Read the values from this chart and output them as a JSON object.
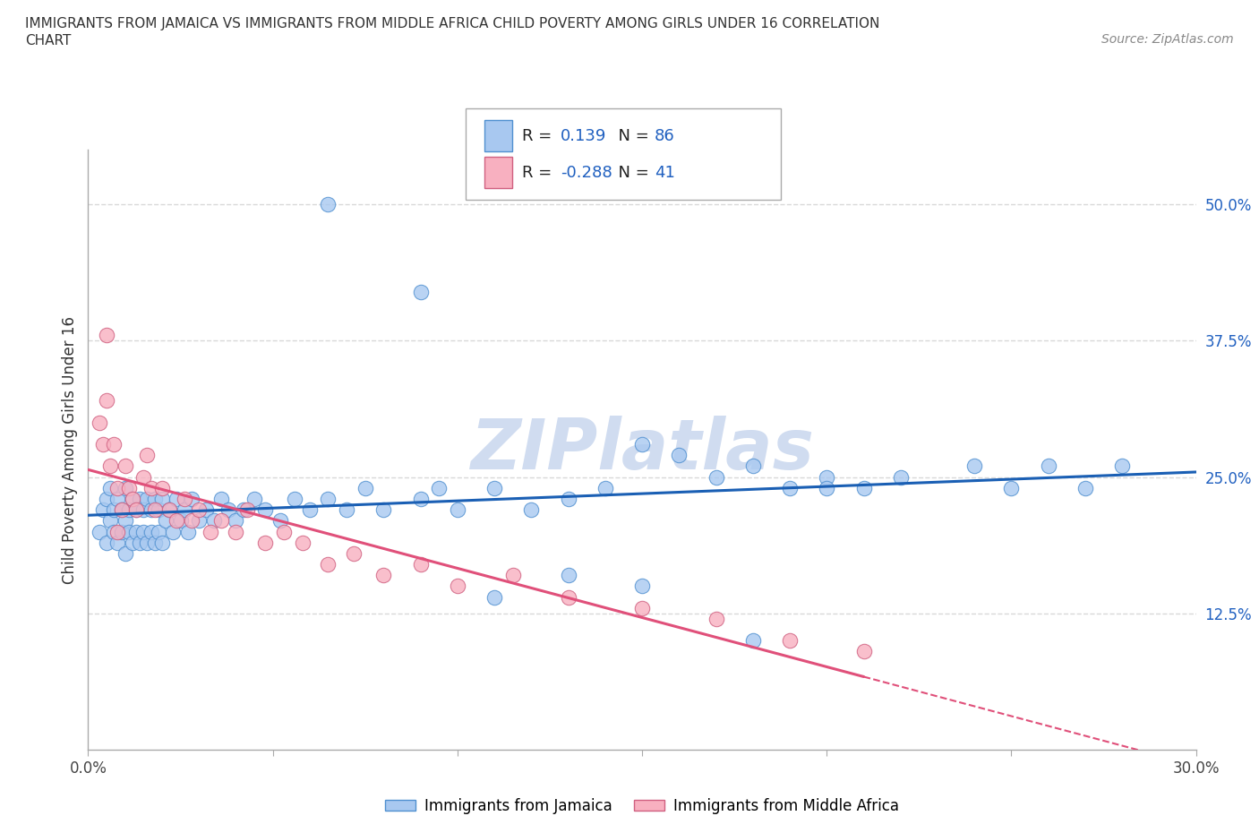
{
  "title": "IMMIGRANTS FROM JAMAICA VS IMMIGRANTS FROM MIDDLE AFRICA CHILD POVERTY AMONG GIRLS UNDER 16 CORRELATION\nCHART",
  "source": "Source: ZipAtlas.com",
  "ylabel": "Child Poverty Among Girls Under 16",
  "xlim": [
    0,
    0.3
  ],
  "ylim": [
    0,
    0.55
  ],
  "xtick_positions": [
    0.0,
    0.05,
    0.1,
    0.15,
    0.2,
    0.25,
    0.3
  ],
  "xticklabels": [
    "0.0%",
    "",
    "",
    "",
    "",
    "",
    "30.0%"
  ],
  "ytick_positions": [
    0.125,
    0.25,
    0.375,
    0.5
  ],
  "yticklabels_right": [
    "12.5%",
    "25.0%",
    "37.5%",
    "50.0%"
  ],
  "R_jamaica": 0.139,
  "N_jamaica": 86,
  "R_middle_africa": -0.288,
  "N_middle_africa": 41,
  "color_jamaica": "#a8c8f0",
  "color_middle_africa": "#f8b0c0",
  "edge_color_jamaica": "#5090d0",
  "edge_color_middle_africa": "#d06080",
  "line_color_jamaica": "#1a5fb4",
  "line_color_middle_africa": "#e0507a",
  "watermark": "ZIPlatlas",
  "watermark_color": "#d0dcf0",
  "grid_color": "#d8d8d8",
  "jamaica_x": [
    0.003,
    0.004,
    0.005,
    0.005,
    0.006,
    0.006,
    0.007,
    0.007,
    0.008,
    0.008,
    0.009,
    0.009,
    0.01,
    0.01,
    0.01,
    0.011,
    0.011,
    0.012,
    0.012,
    0.013,
    0.013,
    0.014,
    0.014,
    0.015,
    0.015,
    0.016,
    0.016,
    0.017,
    0.017,
    0.018,
    0.018,
    0.019,
    0.019,
    0.02,
    0.02,
    0.021,
    0.022,
    0.023,
    0.024,
    0.025,
    0.026,
    0.027,
    0.028,
    0.03,
    0.032,
    0.034,
    0.036,
    0.038,
    0.04,
    0.042,
    0.045,
    0.048,
    0.052,
    0.056,
    0.06,
    0.065,
    0.07,
    0.075,
    0.08,
    0.09,
    0.095,
    0.1,
    0.11,
    0.12,
    0.13,
    0.14,
    0.15,
    0.16,
    0.17,
    0.18,
    0.19,
    0.2,
    0.21,
    0.22,
    0.24,
    0.26,
    0.27,
    0.28,
    0.11,
    0.13,
    0.15,
    0.18,
    0.065,
    0.09,
    0.2,
    0.25
  ],
  "jamaica_y": [
    0.2,
    0.22,
    0.19,
    0.23,
    0.21,
    0.24,
    0.2,
    0.22,
    0.19,
    0.23,
    0.2,
    0.22,
    0.18,
    0.21,
    0.24,
    0.2,
    0.22,
    0.19,
    0.23,
    0.2,
    0.22,
    0.19,
    0.23,
    0.2,
    0.22,
    0.19,
    0.23,
    0.2,
    0.22,
    0.19,
    0.23,
    0.2,
    0.22,
    0.19,
    0.23,
    0.21,
    0.22,
    0.2,
    0.23,
    0.21,
    0.22,
    0.2,
    0.23,
    0.21,
    0.22,
    0.21,
    0.23,
    0.22,
    0.21,
    0.22,
    0.23,
    0.22,
    0.21,
    0.23,
    0.22,
    0.23,
    0.22,
    0.24,
    0.22,
    0.23,
    0.24,
    0.22,
    0.24,
    0.22,
    0.23,
    0.24,
    0.28,
    0.27,
    0.25,
    0.26,
    0.24,
    0.25,
    0.24,
    0.25,
    0.26,
    0.26,
    0.24,
    0.26,
    0.14,
    0.16,
    0.15,
    0.1,
    0.5,
    0.42,
    0.24,
    0.24
  ],
  "middle_africa_x": [
    0.003,
    0.004,
    0.005,
    0.006,
    0.007,
    0.008,
    0.009,
    0.01,
    0.011,
    0.012,
    0.013,
    0.015,
    0.016,
    0.017,
    0.018,
    0.02,
    0.022,
    0.024,
    0.026,
    0.028,
    0.03,
    0.033,
    0.036,
    0.04,
    0.043,
    0.048,
    0.053,
    0.058,
    0.065,
    0.072,
    0.08,
    0.09,
    0.1,
    0.115,
    0.13,
    0.15,
    0.17,
    0.19,
    0.21,
    0.005,
    0.008
  ],
  "middle_africa_y": [
    0.3,
    0.28,
    0.32,
    0.26,
    0.28,
    0.24,
    0.22,
    0.26,
    0.24,
    0.23,
    0.22,
    0.25,
    0.27,
    0.24,
    0.22,
    0.24,
    0.22,
    0.21,
    0.23,
    0.21,
    0.22,
    0.2,
    0.21,
    0.2,
    0.22,
    0.19,
    0.2,
    0.19,
    0.17,
    0.18,
    0.16,
    0.17,
    0.15,
    0.16,
    0.14,
    0.13,
    0.12,
    0.1,
    0.09,
    0.38,
    0.2
  ]
}
